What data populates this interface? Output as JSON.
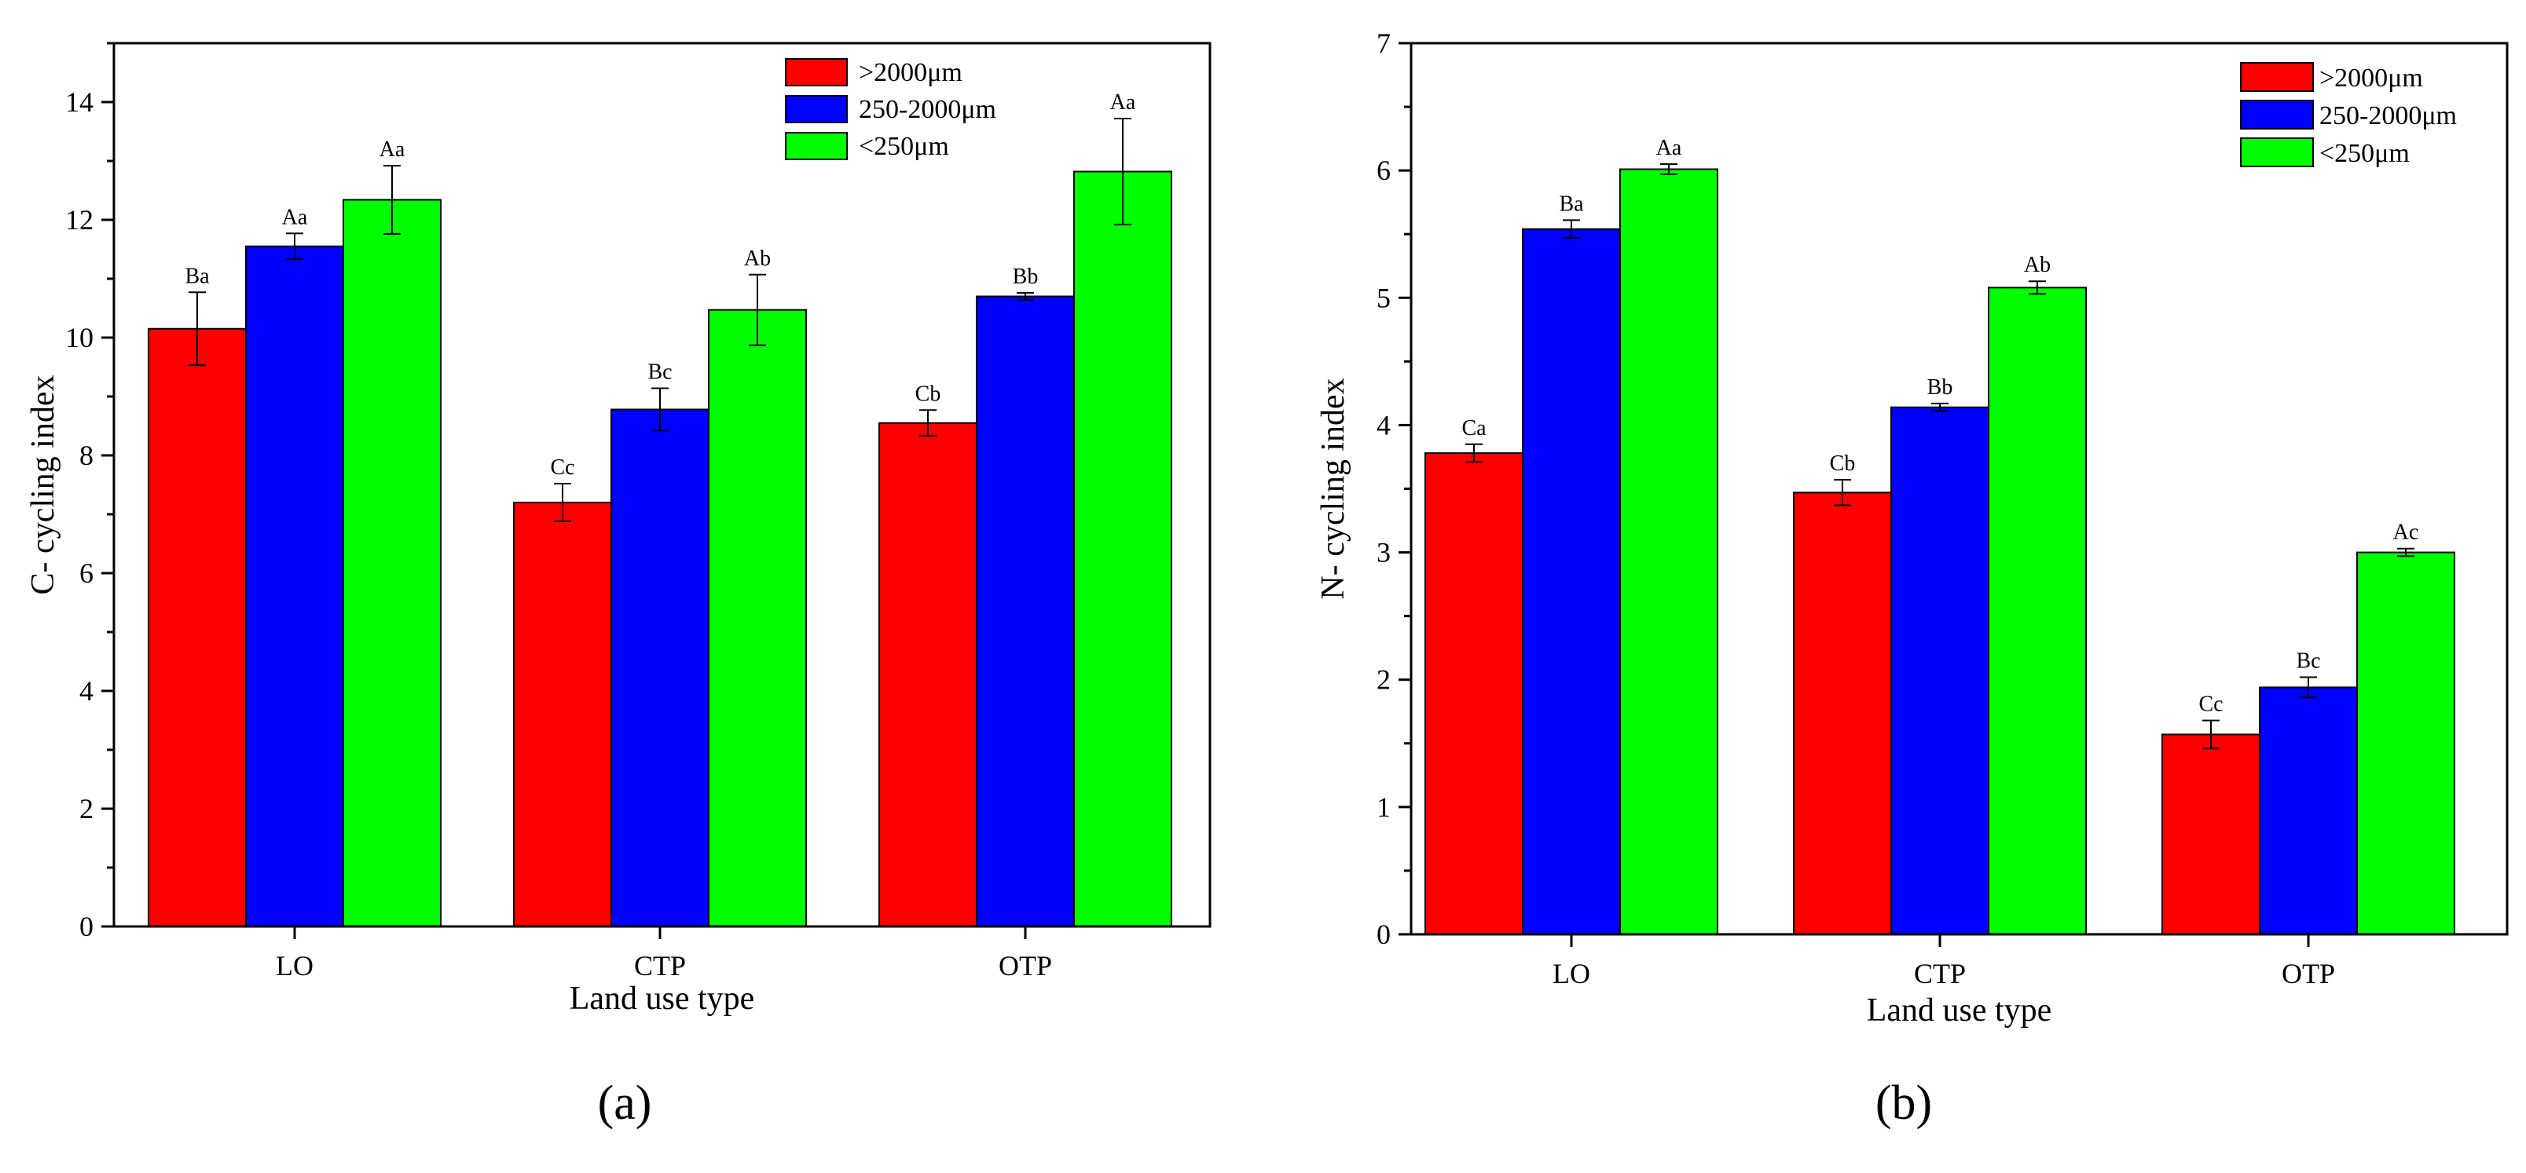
{
  "chart_data": [
    {
      "type": "bar",
      "panel_label": "(a)",
      "categories": [
        "LO",
        "CTP",
        "OTP"
      ],
      "xlabel": "Land use type",
      "ylabel": "C- cycling index",
      "ylim": [
        0,
        15
      ],
      "yticks": [
        0,
        2,
        4,
        6,
        8,
        10,
        12,
        14
      ],
      "yticks_minor": [
        1,
        3,
        5,
        7,
        9,
        11,
        13,
        15
      ],
      "grid": false,
      "legend_position": "top-right",
      "series": [
        {
          "name": ">2000μm",
          "color": "#ff0000",
          "values": [
            10.15,
            7.2,
            8.55
          ],
          "errors": [
            0.62,
            0.32,
            0.22
          ],
          "labels": [
            "Ba",
            "Cc",
            "Cb"
          ]
        },
        {
          "name": "250-2000μm",
          "color": "#0000ff",
          "values": [
            11.55,
            8.78,
            10.7
          ],
          "errors": [
            0.22,
            0.36,
            0.06
          ],
          "labels": [
            "Aa",
            "Bc",
            "Bb"
          ]
        },
        {
          "name": "<250μm",
          "color": "#00ff00",
          "values": [
            12.34,
            10.47,
            12.82
          ],
          "errors": [
            0.58,
            0.6,
            0.9
          ],
          "labels": [
            "Aa",
            "Ab",
            "Aa"
          ]
        }
      ]
    },
    {
      "type": "bar",
      "panel_label": "(b)",
      "categories": [
        "LO",
        "CTP",
        "OTP"
      ],
      "xlabel": "Land use type",
      "ylabel": "N- cycling index",
      "ylim": [
        0,
        7
      ],
      "yticks": [
        0,
        1,
        2,
        3,
        4,
        5,
        6,
        7
      ],
      "yticks_minor": [
        0.5,
        1.5,
        2.5,
        3.5,
        4.5,
        5.5,
        6.5
      ],
      "grid": false,
      "legend_position": "top-right",
      "series": [
        {
          "name": ">2000μm",
          "color": "#ff0000",
          "values": [
            3.78,
            3.47,
            1.57
          ],
          "errors": [
            0.07,
            0.1,
            0.11
          ],
          "labels": [
            "Ca",
            "Cb",
            "Cc"
          ]
        },
        {
          "name": "250-2000μm",
          "color": "#0000ff",
          "values": [
            5.54,
            4.14,
            1.94
          ],
          "errors": [
            0.07,
            0.03,
            0.08
          ],
          "labels": [
            "Ba",
            "Bb",
            "Bc"
          ]
        },
        {
          "name": "<250μm",
          "color": "#00ff00",
          "values": [
            6.01,
            5.08,
            3.0
          ],
          "errors": [
            0.04,
            0.05,
            0.03
          ],
          "labels": [
            "Aa",
            "Ab",
            "Ac"
          ]
        }
      ]
    }
  ]
}
